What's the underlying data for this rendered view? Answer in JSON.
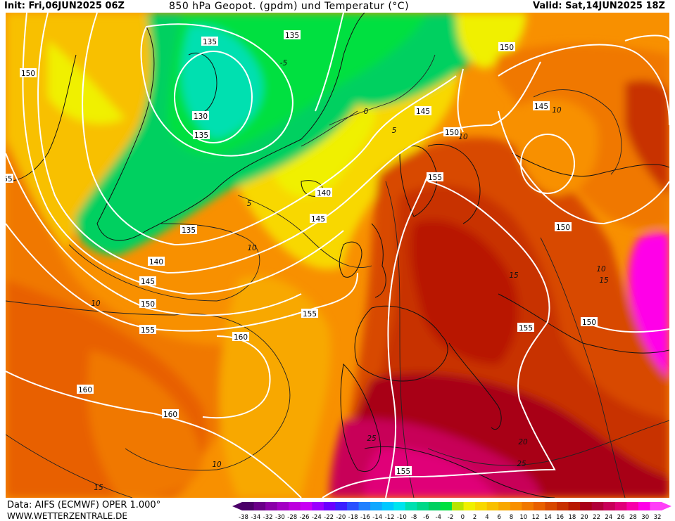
{
  "header": {
    "init": "Init: Fri,06JUN2025 06Z",
    "title": "850 hPa Geopot. (gpdm) und Temperatur (°C)",
    "valid": "Valid: Sat,14JUN2025 18Z"
  },
  "footer": {
    "data_source": "Data: AIFS (ECMWF) OPER 1.000°",
    "website": "WWW.WETTERZENTRALE.DE"
  },
  "legend": {
    "labels": [
      "-38",
      "-34",
      "-32",
      "-30",
      "-28",
      "-26",
      "-24",
      "-22",
      "-20",
      "-18",
      "-16",
      "-14",
      "-12",
      "-10",
      "-8",
      "-6",
      "-4",
      "-2",
      "0",
      "2",
      "4",
      "6",
      "8",
      "10",
      "12",
      "14",
      "16",
      "18",
      "20",
      "22",
      "24",
      "26",
      "28",
      "30",
      "32"
    ],
    "colors": [
      "#4b0068",
      "#6a0088",
      "#8a00a8",
      "#a400c4",
      "#bd00de",
      "#c800f4",
      "#9a00ff",
      "#6a00ff",
      "#3a20ff",
      "#2a50ff",
      "#2080ff",
      "#10a8ff",
      "#00c8ff",
      "#00e4ee",
      "#00e0b0",
      "#00d888",
      "#00d060",
      "#00e040",
      "#b8e400",
      "#f0f000",
      "#f8d800",
      "#f8c000",
      "#f8a800",
      "#f89000",
      "#f07800",
      "#e86000",
      "#d84800",
      "#c83000",
      "#b81800",
      "#a80018",
      "#b00038",
      "#c80058",
      "#e00078",
      "#f800a8",
      "#ff00e8",
      "#ff40f8"
    ],
    "colors_note_count": 36
  },
  "map": {
    "geopotential_labels": [
      {
        "text": "135",
        "id": "z135a"
      },
      {
        "text": "135",
        "id": "z135b"
      },
      {
        "text": "130",
        "id": "z130"
      },
      {
        "text": "135",
        "id": "z135c"
      },
      {
        "text": "135",
        "id": "z135d"
      },
      {
        "text": "140",
        "id": "z140a"
      },
      {
        "text": "140",
        "id": "z140b"
      },
      {
        "text": "145",
        "id": "z145a"
      },
      {
        "text": "145",
        "id": "z145b"
      },
      {
        "text": "145",
        "id": "z145c"
      },
      {
        "text": "150",
        "id": "z150a"
      },
      {
        "text": "150",
        "id": "z150b"
      },
      {
        "text": "150",
        "id": "z150c"
      },
      {
        "text": "150",
        "id": "z150d"
      },
      {
        "text": "150",
        "id": "z150e"
      },
      {
        "text": "155",
        "id": "z155a"
      },
      {
        "text": "155",
        "id": "z155b"
      },
      {
        "text": "155",
        "id": "z155c"
      },
      {
        "text": "155",
        "id": "z155d"
      },
      {
        "text": "155",
        "id": "z155e"
      },
      {
        "text": "160",
        "id": "z160a"
      },
      {
        "text": "160",
        "id": "z160b"
      },
      {
        "text": "160",
        "id": "z160c"
      },
      {
        "text": "145",
        "id": "z145d"
      },
      {
        "text": "150",
        "id": "z150f"
      },
      {
        "text": "55",
        "id": "z55"
      }
    ],
    "temperature_labels": [
      {
        "text": "-5",
        "id": "t_m5"
      },
      {
        "text": "0",
        "id": "t_0"
      },
      {
        "text": "5",
        "id": "t_5a"
      },
      {
        "text": "5",
        "id": "t_5b"
      },
      {
        "text": "10",
        "id": "t_10a"
      },
      {
        "text": "10",
        "id": "t_10b"
      },
      {
        "text": "10",
        "id": "t_10c"
      },
      {
        "text": "10",
        "id": "t_10d"
      },
      {
        "text": "10",
        "id": "t_10e"
      },
      {
        "text": "10",
        "id": "t_10f"
      },
      {
        "text": "15",
        "id": "t_15a"
      },
      {
        "text": "15",
        "id": "t_15b"
      },
      {
        "text": "15",
        "id": "t_15c"
      },
      {
        "text": "20",
        "id": "t_20"
      },
      {
        "text": "25",
        "id": "t_25a"
      },
      {
        "text": "25",
        "id": "t_25b"
      }
    ]
  }
}
